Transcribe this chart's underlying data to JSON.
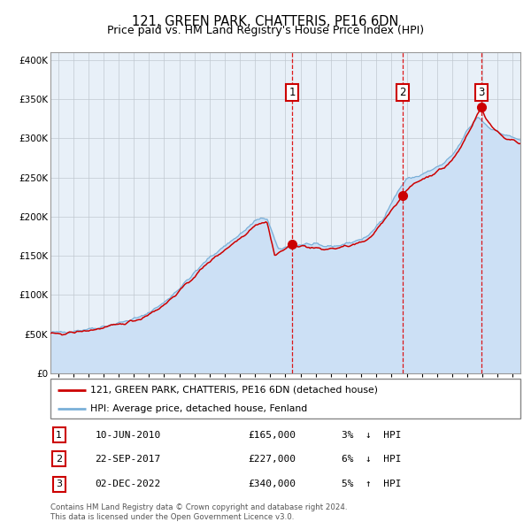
{
  "title": "121, GREEN PARK, CHATTERIS, PE16 6DN",
  "subtitle": "Price paid vs. HM Land Registry's House Price Index (HPI)",
  "ylim": [
    0,
    410000
  ],
  "yticks": [
    0,
    50000,
    100000,
    150000,
    200000,
    250000,
    300000,
    350000,
    400000
  ],
  "ytick_labels": [
    "£0",
    "£50K",
    "£100K",
    "£150K",
    "£200K",
    "£250K",
    "£300K",
    "£350K",
    "£400K"
  ],
  "xlim_start": 1994.5,
  "xlim_end": 2025.5,
  "hpi_fill_color": "#cce0f5",
  "hpi_line_color": "#7ab0d8",
  "sale_color": "#cc0000",
  "bg_color": "#e8f0f8",
  "grid_color": "#c0c8d0",
  "transactions": [
    {
      "num": 1,
      "date": "10-JUN-2010",
      "price": 165000,
      "pct": "3%",
      "direction": "↓",
      "x_year": 2010.44
    },
    {
      "num": 2,
      "date": "22-SEP-2017",
      "price": 227000,
      "pct": "6%",
      "direction": "↓",
      "x_year": 2017.72
    },
    {
      "num": 3,
      "date": "02-DEC-2022",
      "price": 340000,
      "pct": "5%",
      "direction": "↑",
      "x_year": 2022.92
    }
  ],
  "legend_line1": "121, GREEN PARK, CHATTERIS, PE16 6DN (detached house)",
  "legend_line2": "HPI: Average price, detached house, Fenland",
  "footer": "Contains HM Land Registry data © Crown copyright and database right 2024.\nThis data is licensed under the Open Government Licence v3.0.",
  "title_fontsize": 10.5,
  "subtitle_fontsize": 9
}
